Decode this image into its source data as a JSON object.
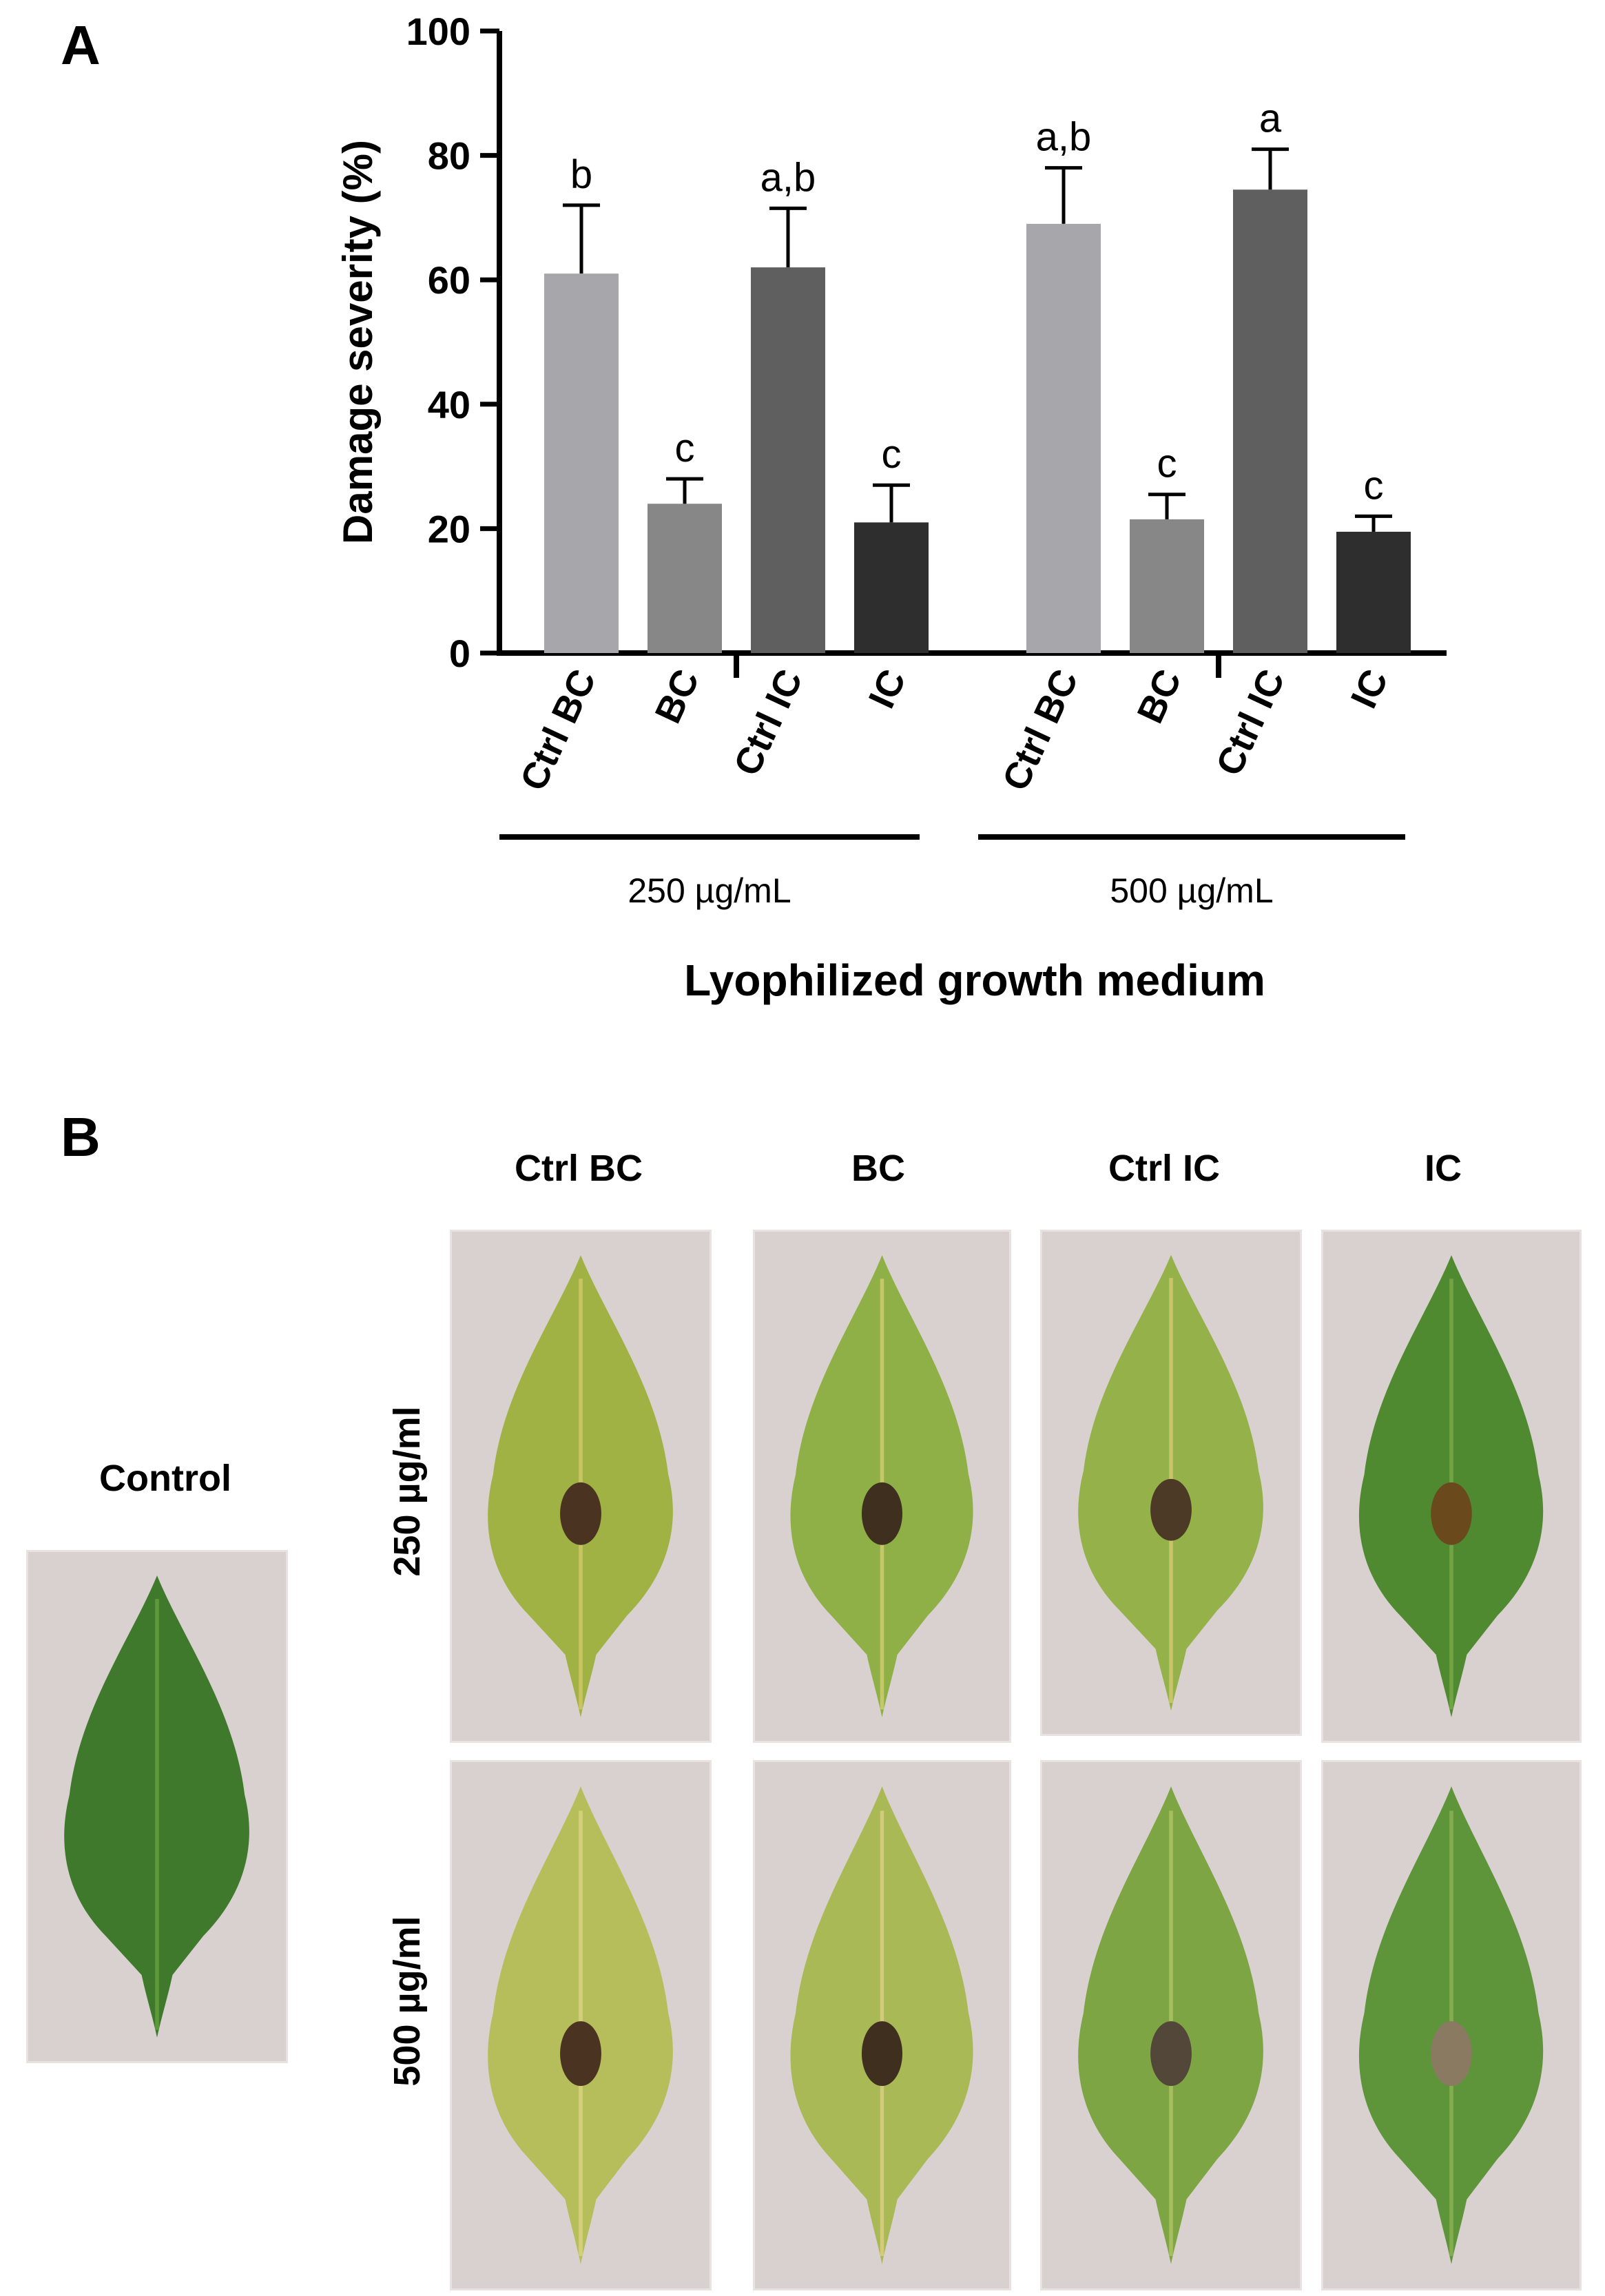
{
  "panel_a_label": "A",
  "panel_b_label": "B",
  "chart_data": {
    "type": "bar",
    "title": "",
    "ylabel": "Damage severity (%)",
    "xlabel": "Lyophilized growth medium",
    "ylim": [
      0,
      100
    ],
    "yticks": [
      0,
      20,
      40,
      60,
      80,
      100
    ],
    "groups": [
      {
        "label": "250 µg/mL",
        "bars": [
          {
            "category": "Ctrl BC",
            "value": 61,
            "error": 11,
            "letter": "b",
            "color": "#a7a7ab"
          },
          {
            "category": "BC",
            "value": 24,
            "error": 4,
            "letter": "c",
            "color": "#878787"
          },
          {
            "category": "Ctrl IC",
            "value": 62,
            "error": 9.5,
            "letter": "a,b",
            "color": "#5f5f5f"
          },
          {
            "category": "IC",
            "value": 21,
            "error": 6,
            "letter": "c",
            "color": "#2e2e2e"
          }
        ]
      },
      {
        "label": "500 µg/mL",
        "bars": [
          {
            "category": "Ctrl BC",
            "value": 69,
            "error": 9,
            "letter": "a,b",
            "color": "#a7a7ab"
          },
          {
            "category": "BC",
            "value": 21.5,
            "error": 4,
            "letter": "c",
            "color": "#878787"
          },
          {
            "category": "Ctrl IC",
            "value": 74.5,
            "error": 6.5,
            "letter": "a",
            "color": "#5f5f5f"
          },
          {
            "category": "IC",
            "value": 19.5,
            "error": 2.5,
            "letter": "c",
            "color": "#2e2e2e"
          }
        ]
      }
    ]
  },
  "photos": {
    "control_label": "Control",
    "column_labels": [
      "Ctrl BC",
      "BC",
      "Ctrl IC",
      "IC"
    ],
    "row_labels": [
      "250 µg/ml",
      "500 µg/ml"
    ]
  }
}
